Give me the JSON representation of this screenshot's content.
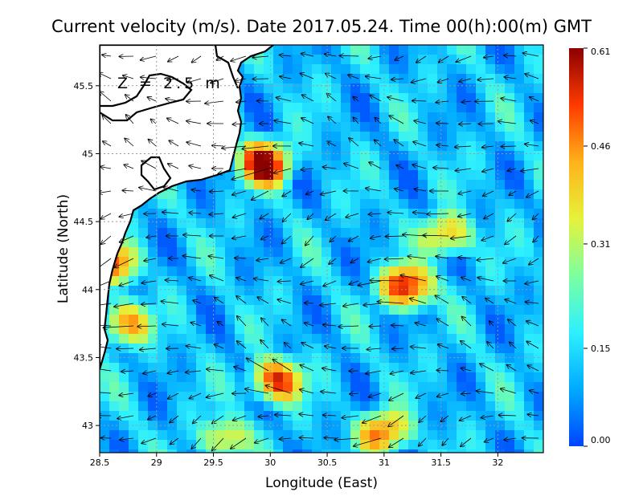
{
  "chart_data": {
    "type": "heatmap",
    "title": "Current velocity (m/s). Date 2017.05.24. Time 00(h):00(m) GMT",
    "xlabel": "Longitude (East)",
    "ylabel": "Latitude (North)",
    "annotation": "Z = 2.5 m",
    "xlim": [
      28.5,
      32.4
    ],
    "ylim": [
      42.8,
      45.8
    ],
    "x_ticks": [
      28.5,
      29,
      29.5,
      30,
      30.5,
      31,
      31.5,
      32
    ],
    "x_tick_labels": [
      "28.5",
      "29",
      "29.5",
      "30",
      "30.5",
      "31",
      "31.5",
      "32"
    ],
    "y_ticks": [
      43,
      43.5,
      44,
      44.5,
      45,
      45.5
    ],
    "y_tick_labels": [
      "43",
      "43.5",
      "44",
      "44.5",
      "45",
      "45.5"
    ],
    "grid": true,
    "colorbar": {
      "ticks": [
        0.61,
        0.46,
        0.31,
        0.15,
        0.0
      ],
      "tick_labels": [
        "0.61",
        "0.46",
        "0.31",
        "0.15",
        "0.00"
      ],
      "colors": [
        "#0044ff",
        "#00aaff",
        "#2ef0ff",
        "#7dffa0",
        "#e6f23a",
        "#ffb21a",
        "#ff3a00",
        "#8b0000"
      ]
    },
    "speed_hotspots": [
      {
        "lon": 29.95,
        "lat": 44.93,
        "speed": 0.61
      },
      {
        "lon": 30.05,
        "lat": 43.33,
        "speed": 0.55
      },
      {
        "lon": 31.2,
        "lat": 44.02,
        "speed": 0.58
      },
      {
        "lon": 31.55,
        "lat": 44.4,
        "speed": 0.45
      },
      {
        "lon": 28.72,
        "lat": 43.75,
        "speed": 0.47
      },
      {
        "lon": 28.65,
        "lat": 44.2,
        "speed": 0.45
      },
      {
        "lon": 31.0,
        "lat": 42.95,
        "speed": 0.5
      },
      {
        "lon": 29.6,
        "lat": 42.9,
        "speed": 0.4
      }
    ],
    "background_speed": 0.12
  }
}
